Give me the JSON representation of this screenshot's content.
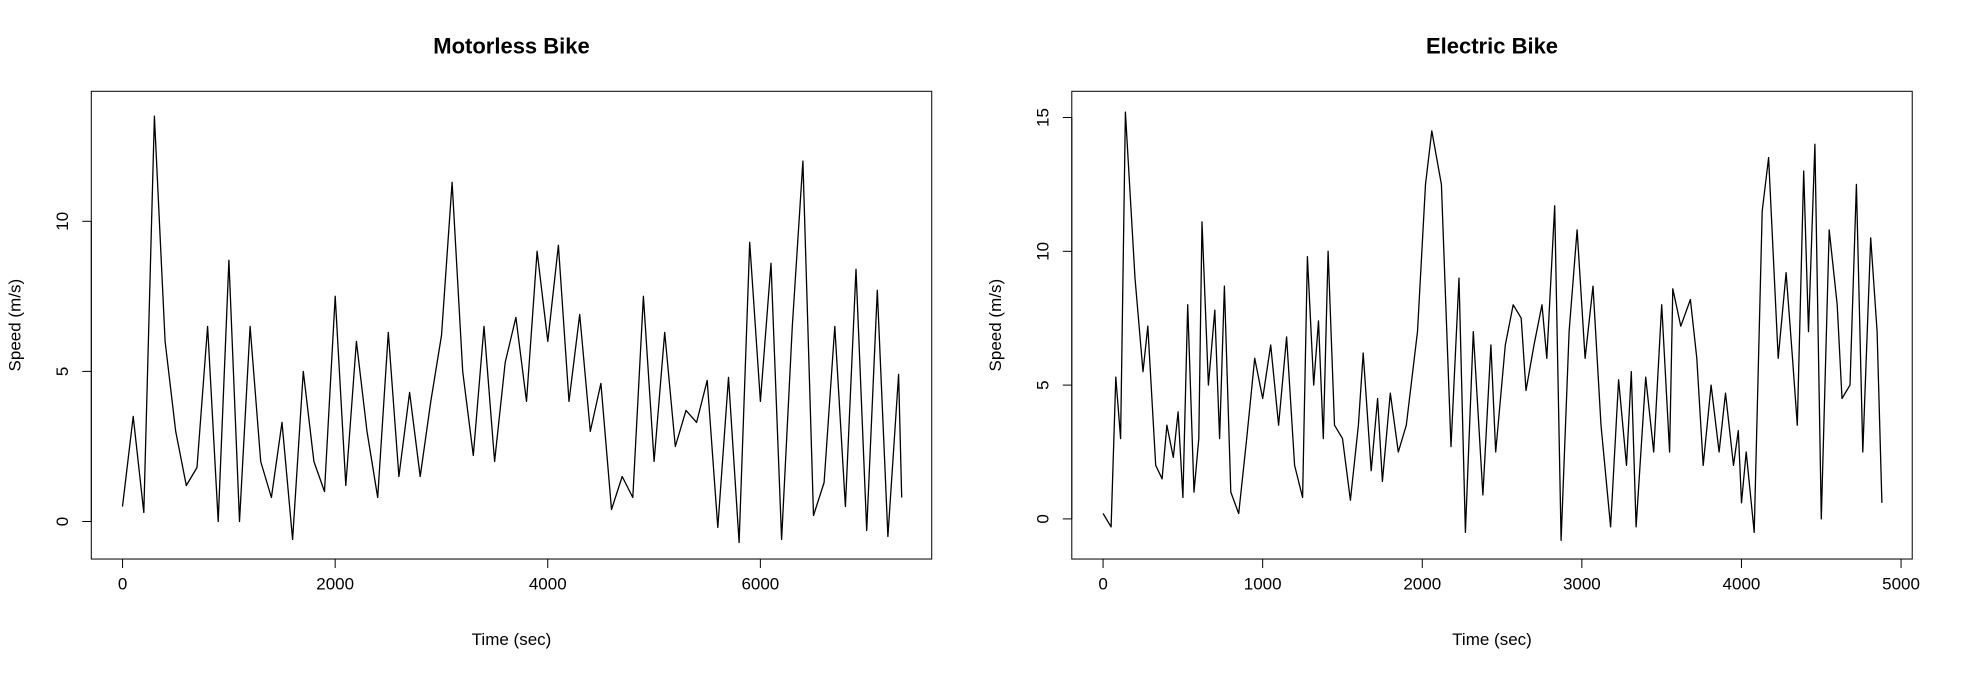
{
  "chart_data": [
    {
      "type": "line",
      "title": "Motorless Bike",
      "x_label": "Time (sec)",
      "y_label": "Speed (m/s)",
      "color": "#000000",
      "x": [
        0,
        100,
        200,
        300,
        400,
        500,
        600,
        700,
        800,
        900,
        1000,
        1100,
        1200,
        1300,
        1400,
        1500,
        1600,
        1700,
        1800,
        1900,
        2000,
        2100,
        2200,
        2300,
        2400,
        2500,
        2600,
        2700,
        2800,
        2900,
        3000,
        3100,
        3200,
        3300,
        3400,
        3500,
        3600,
        3700,
        3800,
        3900,
        4000,
        4100,
        4200,
        4300,
        4400,
        4500,
        4600,
        4700,
        4800,
        4900,
        5000,
        5100,
        5200,
        5300,
        5400,
        5500,
        5600,
        5700,
        5800,
        5900,
        6000,
        6100,
        6200,
        6300,
        6400,
        6500,
        6600,
        6700,
        6800,
        6900,
        7000,
        7100,
        7200,
        7300,
        7330
      ],
      "values": [
        0.5,
        3.5,
        0.3,
        13.5,
        6,
        3,
        1.2,
        1.8,
        6.5,
        0,
        8.7,
        0,
        6.5,
        2,
        0.8,
        3.3,
        -0.6,
        5,
        2,
        1,
        7.5,
        1.2,
        6,
        3,
        0.8,
        6.3,
        1.5,
        4.3,
        1.5,
        4,
        6.2,
        11.3,
        5,
        2.2,
        6.5,
        2,
        5.3,
        6.8,
        4,
        9,
        6,
        9.2,
        4,
        6.9,
        3,
        4.6,
        0.4,
        1.5,
        0.8,
        7.5,
        2,
        6.3,
        2.5,
        3.7,
        3.3,
        4.7,
        -0.2,
        4.8,
        -0.7,
        9.3,
        4,
        8.6,
        -0.6,
        6.5,
        12,
        0.2,
        1.3,
        6.5,
        0.5,
        8.4,
        -0.3,
        7.7,
        -0.5,
        4.9,
        0.8
      ],
      "xlim": [
        -294,
        7612
      ],
      "ylim": [
        -1.25,
        14.33
      ],
      "xticks": [
        0,
        2000,
        4000,
        6000
      ],
      "yticks": [
        0,
        5,
        10
      ]
    },
    {
      "type": "line",
      "title": "Electric Bike",
      "x_label": "Time (sec)",
      "y_label": "Speed (m/s)",
      "color": "#000000",
      "x": [
        0,
        50,
        80,
        110,
        140,
        200,
        250,
        280,
        330,
        370,
        400,
        440,
        470,
        500,
        530,
        570,
        600,
        620,
        660,
        700,
        730,
        760,
        800,
        850,
        900,
        950,
        1000,
        1050,
        1100,
        1150,
        1200,
        1250,
        1280,
        1320,
        1350,
        1380,
        1410,
        1450,
        1500,
        1550,
        1600,
        1630,
        1680,
        1720,
        1750,
        1800,
        1850,
        1900,
        1970,
        2020,
        2060,
        2120,
        2180,
        2230,
        2270,
        2320,
        2380,
        2430,
        2460,
        2520,
        2570,
        2620,
        2650,
        2700,
        2750,
        2780,
        2830,
        2870,
        2920,
        2970,
        3020,
        3070,
        3120,
        3180,
        3230,
        3280,
        3310,
        3340,
        3400,
        3450,
        3500,
        3550,
        3570,
        3620,
        3680,
        3720,
        3760,
        3810,
        3860,
        3900,
        3950,
        3980,
        4000,
        4030,
        4080,
        4130,
        4170,
        4230,
        4280,
        4320,
        4350,
        4390,
        4420,
        4460,
        4500,
        4550,
        4600,
        4630,
        4680,
        4720,
        4760,
        4810,
        4850,
        4880
      ],
      "values": [
        0.2,
        -0.3,
        5.3,
        3,
        15.2,
        9,
        5.5,
        7.2,
        2,
        1.5,
        3.5,
        2.3,
        4,
        0.8,
        8,
        1,
        3,
        11.1,
        5,
        7.8,
        3,
        8.7,
        1,
        0.2,
        3,
        6,
        4.5,
        6.5,
        3.5,
        6.8,
        2,
        0.8,
        9.8,
        5,
        7.4,
        3,
        10,
        3.5,
        3,
        0.7,
        3.5,
        6.2,
        1.8,
        4.5,
        1.4,
        4.7,
        2.5,
        3.5,
        7,
        12.5,
        14.5,
        12.5,
        2.7,
        9,
        -0.5,
        7,
        0.9,
        6.5,
        2.5,
        6.5,
        8,
        7.5,
        4.8,
        6.5,
        8,
        6,
        11.7,
        -0.8,
        7,
        10.8,
        6,
        8.7,
        3.5,
        -0.3,
        5.2,
        2,
        5.5,
        -0.3,
        5.3,
        2.5,
        8,
        2.5,
        8.6,
        7.2,
        8.2,
        6,
        2,
        5,
        2.5,
        4.7,
        2,
        3.3,
        0.6,
        2.5,
        -0.5,
        11.5,
        13.5,
        6,
        9.2,
        6,
        3.5,
        13,
        7,
        14,
        0,
        10.8,
        8,
        4.5,
        5,
        12.5,
        2.5,
        10.5,
        7,
        0.6
      ],
      "xlim": [
        -196,
        5070
      ],
      "ylim": [
        -1.5,
        15.98
      ],
      "xticks": [
        0,
        1000,
        2000,
        3000,
        4000,
        5000
      ],
      "yticks": [
        0,
        5,
        10,
        15
      ]
    }
  ]
}
